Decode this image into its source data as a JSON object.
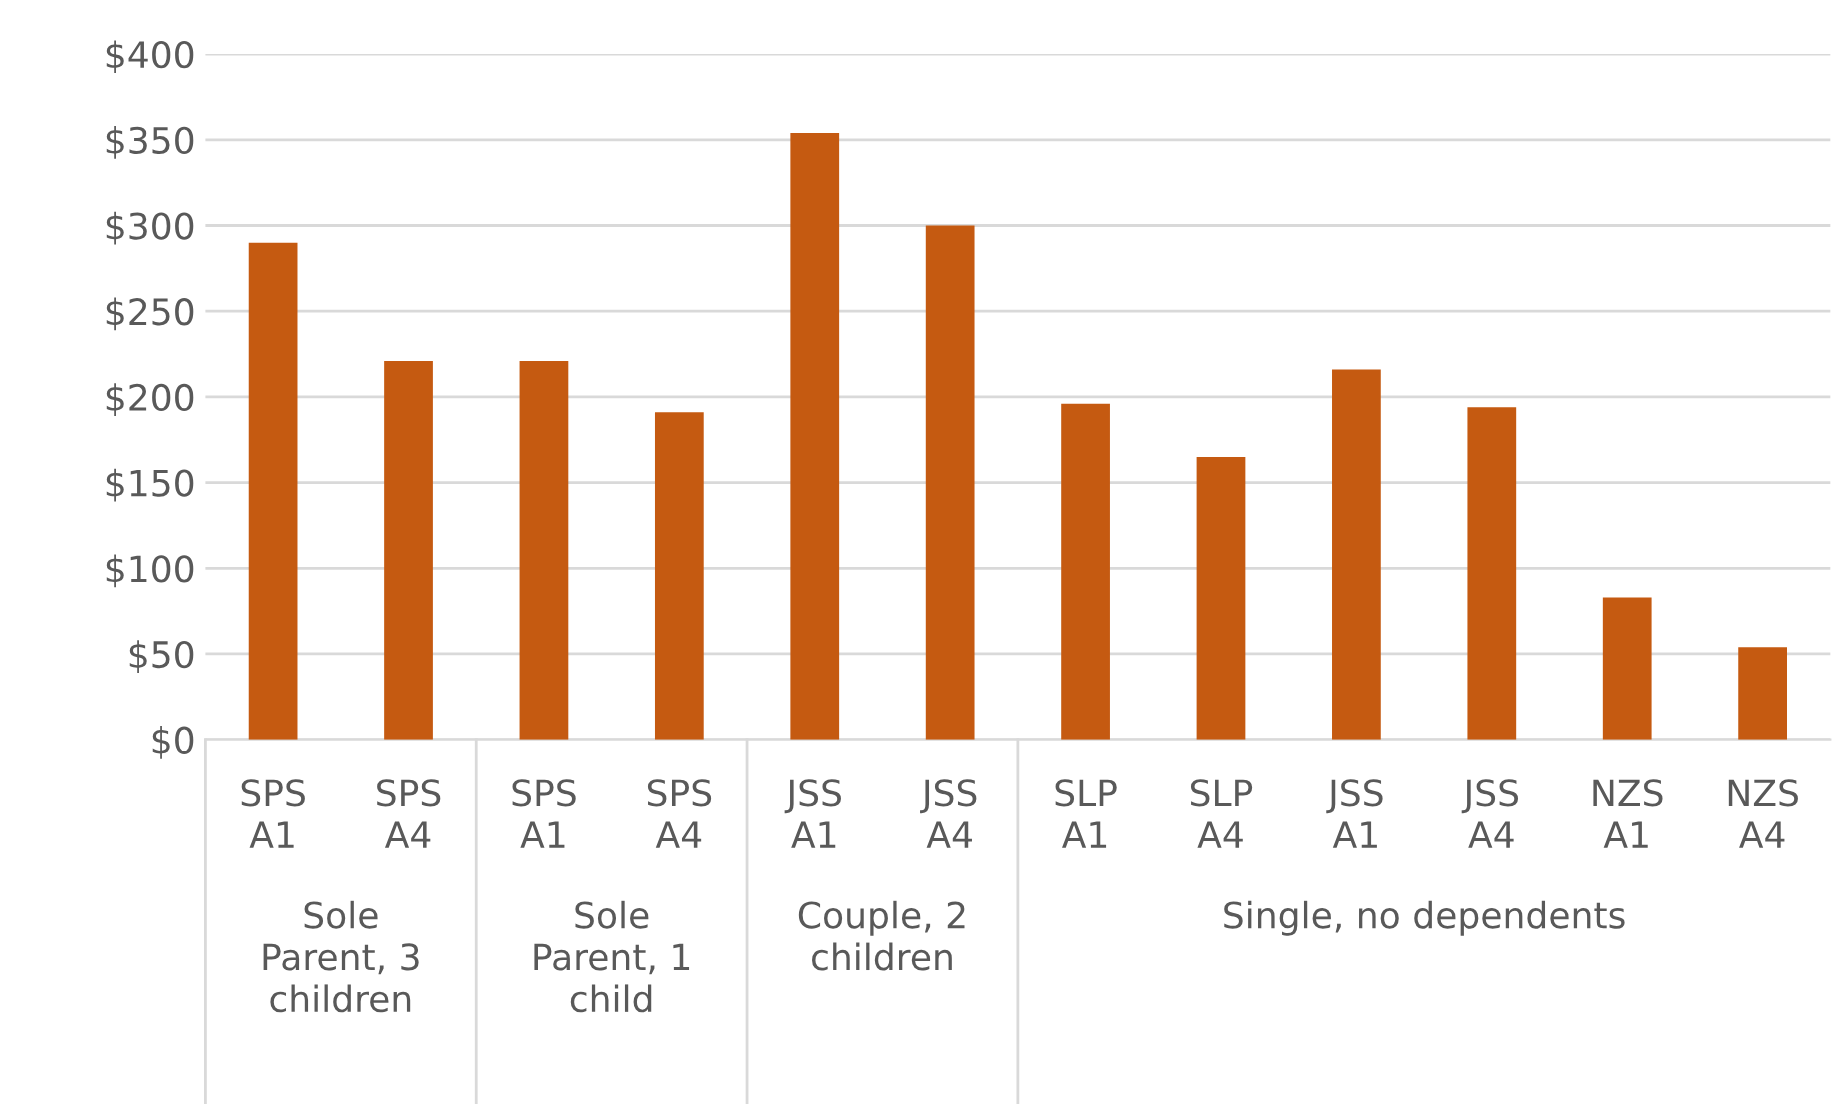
{
  "chart_data": {
    "type": "bar",
    "categories": [
      "SPS\nA1",
      "SPS\nA4",
      "SPS\nA1",
      "SPS\nA4",
      "JSS\nA1",
      "JSS\nA4",
      "SLP\nA1",
      "SLP\nA4",
      "JSS\nA1",
      "JSS\nA4",
      "NZS\nA1",
      "NZS\nA4"
    ],
    "values": [
      290,
      221,
      221,
      191,
      354,
      300,
      196,
      165,
      216,
      194,
      83,
      54
    ],
    "color": "#c55a11",
    "ylim": [
      0,
      400
    ],
    "yticks": [
      {
        "value": 0,
        "label": "$0"
      },
      {
        "value": 50,
        "label": "$50"
      },
      {
        "value": 100,
        "label": "$100"
      },
      {
        "value": 150,
        "label": "$150"
      },
      {
        "value": 200,
        "label": "$200"
      },
      {
        "value": 250,
        "label": "$250"
      },
      {
        "value": 300,
        "label": "$300"
      },
      {
        "value": 350,
        "label": "$350"
      },
      {
        "value": 400,
        "label": "$400"
      }
    ],
    "grid": "y",
    "annotations": [
      "Sole\nParent, 3\nchildren",
      "Sole\nParent, 1\nchild",
      "Couple, 2\nchildren",
      "Single, no dependents"
    ]
  }
}
